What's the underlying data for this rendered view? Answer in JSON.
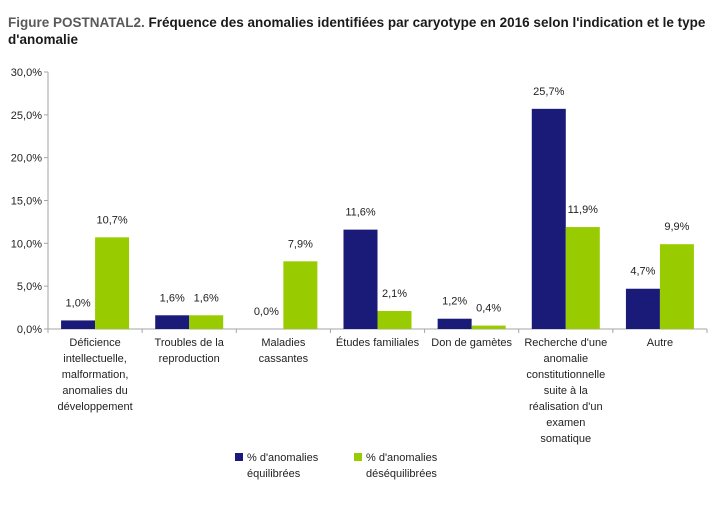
{
  "title": {
    "prefix": "Figure POSTNATAL2.",
    "text": " Fréquence des anomalies identifiées par caryotype en 2016 selon l'indication et le type d'anomalie"
  },
  "colors": {
    "series1": "#1a1a78",
    "series2": "#99cc00",
    "axis": "#a6a6a6",
    "text": "#222222"
  },
  "chart_data": {
    "type": "bar",
    "ylim": [
      0,
      30
    ],
    "yticks": [
      "0,0%",
      "5,0%",
      "10,0%",
      "15,0%",
      "20,0%",
      "25,0%",
      "30,0%"
    ],
    "grid": false,
    "legend_position": "bottom",
    "categories": [
      [
        "Déficience",
        "intellectuelle,",
        "malformation,",
        "anomalies du",
        "développement"
      ],
      [
        "Troubles de la",
        "reproduction"
      ],
      [
        "Maladies",
        "cassantes"
      ],
      [
        "Études familiales"
      ],
      [
        "Don de gamètes"
      ],
      [
        "Recherche d'une",
        "anomalie",
        "constitutionnelle",
        "suite à la",
        "réalisation d'un",
        "examen",
        "somatique"
      ],
      [
        "Autre"
      ]
    ],
    "series": [
      {
        "name": "% d'anomalies équilibrées",
        "legend_lines": [
          "% d'anomalies",
          "équilibrées"
        ],
        "values": [
          1.0,
          1.6,
          0.0,
          11.6,
          1.2,
          25.7,
          4.7
        ],
        "labels": [
          "1,0%",
          "1,6%",
          "0,0%",
          "11,6%",
          "1,2%",
          "25,7%",
          "4,7%"
        ]
      },
      {
        "name": "% d'anomalies déséquilibrées",
        "legend_lines": [
          "% d'anomalies",
          "déséquilibrées"
        ],
        "values": [
          10.7,
          1.6,
          7.9,
          2.1,
          0.4,
          11.9,
          9.9
        ],
        "labels": [
          "10,7%",
          "1,6%",
          "7,9%",
          "2,1%",
          "0,4%",
          "11,9%",
          "9,9%"
        ]
      }
    ]
  }
}
